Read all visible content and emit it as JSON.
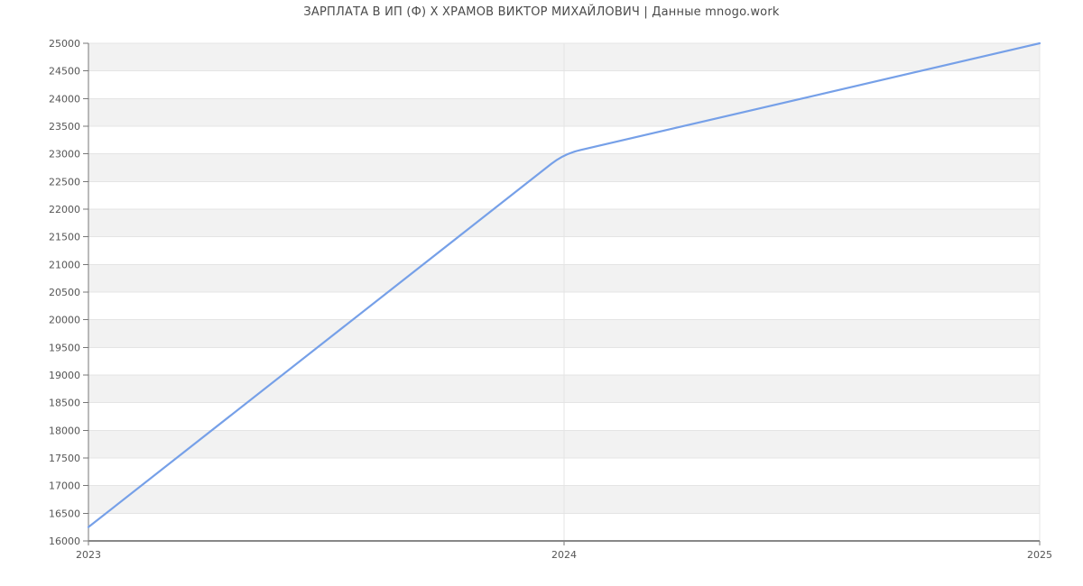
{
  "title": "ЗАРПЛАТА В ИП (Ф) Х ХРАМОВ ВИКТОР МИХАЙЛОВИЧ | Данные mnogo.work",
  "chart_data": {
    "type": "line",
    "title": "ЗАРПЛАТА В ИП (Ф) Х ХРАМОВ ВИКТОР МИХАЙЛОВИЧ | Данные mnogo.work",
    "x": [
      "2023",
      "2024",
      "2025"
    ],
    "values": [
      16250,
      23000,
      25000
    ],
    "xlabel": "",
    "ylabel": "",
    "ylim": [
      16000,
      25000
    ],
    "ytick_step": 500,
    "grid": true,
    "legend_position": "none",
    "colors": {
      "line": "#76a0e8",
      "band": "#f2f2f2",
      "band_alt": "#ffffff",
      "gridline": "#e4e4e4",
      "axis": "#888888",
      "tick": "#777777",
      "tick_label": "#555555",
      "title": "#4a4a4a"
    }
  }
}
